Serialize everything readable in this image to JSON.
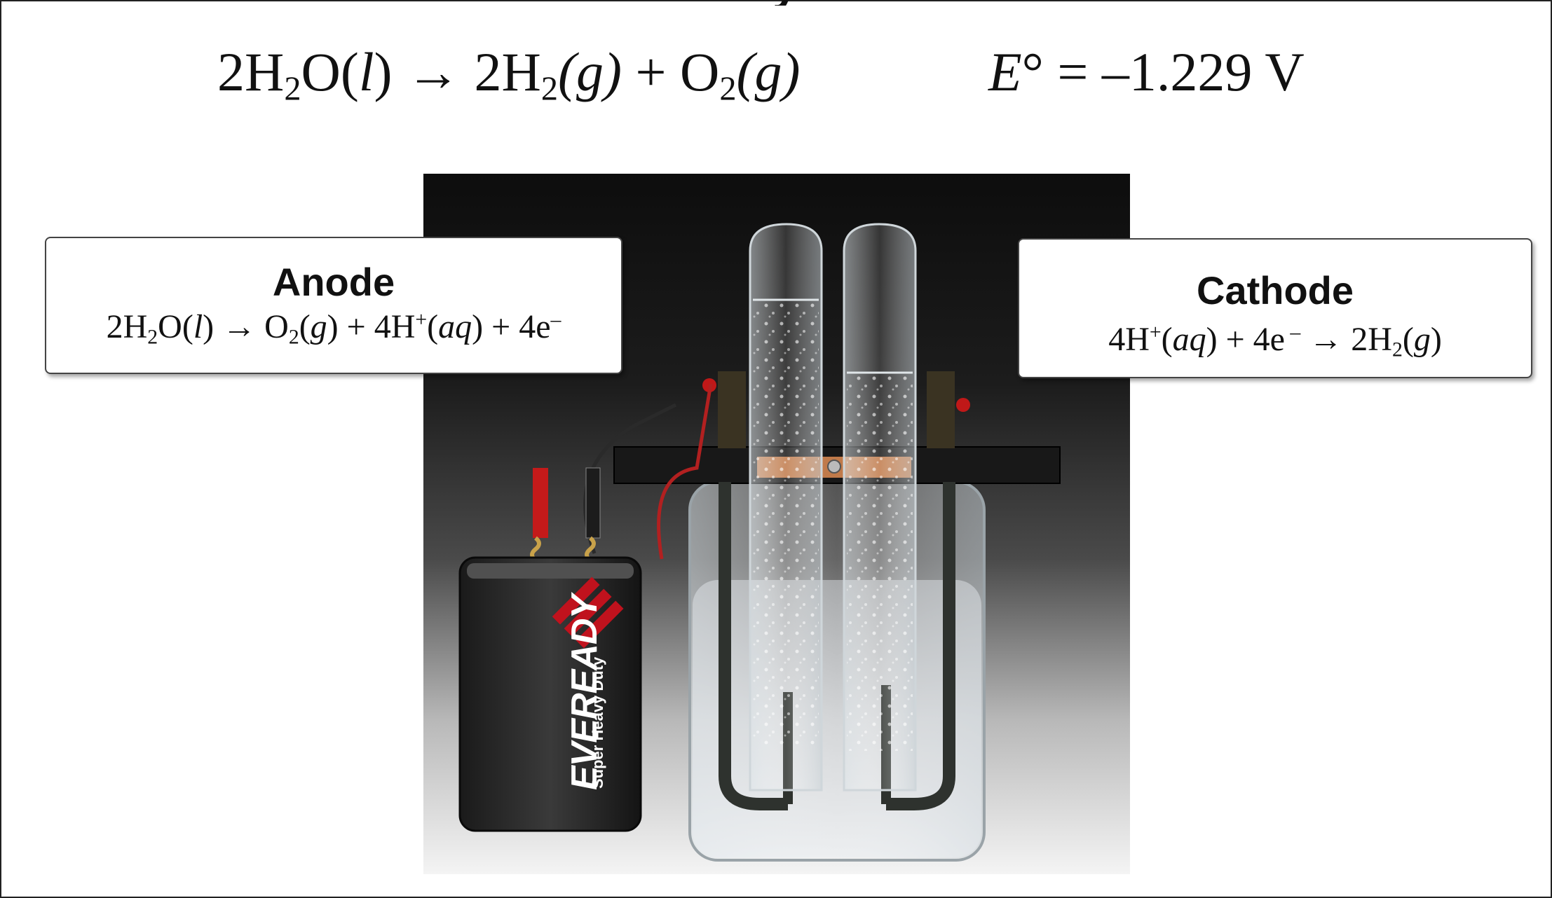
{
  "slide": {
    "equation": {
      "reactant_coef": "2H",
      "reactant_sub": "2",
      "reactant_rest": "O(",
      "reactant_state": "l",
      "reactant_close": ")",
      "arrow": " → ",
      "p1_coef": "2H",
      "p1_sub": "2",
      "p1_state": "(g)",
      "plus": " + O",
      "p2_sub": "2",
      "p2_state": "(g)"
    },
    "potential": {
      "symbol": "E",
      "degree": "° = ",
      "value": "–1.229 V"
    }
  },
  "anode": {
    "label": "Anode",
    "rxn_a": "2H",
    "rxn_a_sub": "2",
    "rxn_b": "O(",
    "rxn_b_state": "l",
    "rxn_c": ") → O",
    "rxn_c_sub": "2",
    "rxn_d": "(",
    "rxn_d_state": "g",
    "rxn_e": ") + 4H",
    "rxn_e_sup": "+",
    "rxn_f": "(",
    "rxn_f_state": "aq",
    "rxn_g": ") + 4e",
    "rxn_g_sup": "–"
  },
  "cathode": {
    "label": "Cathode",
    "rxn_a": "4H",
    "rxn_a_sup": "+",
    "rxn_b": "(",
    "rxn_b_state": "aq",
    "rxn_c": ") + 4e",
    "rxn_c_sup": " –",
    "rxn_d": " → 2H",
    "rxn_d_sub": "2",
    "rxn_e": "(",
    "rxn_e_state": "g",
    "rxn_f": ")"
  },
  "photo": {
    "battery_brand": "EVEREADY",
    "battery_sub": "Super Heavy Duty"
  }
}
